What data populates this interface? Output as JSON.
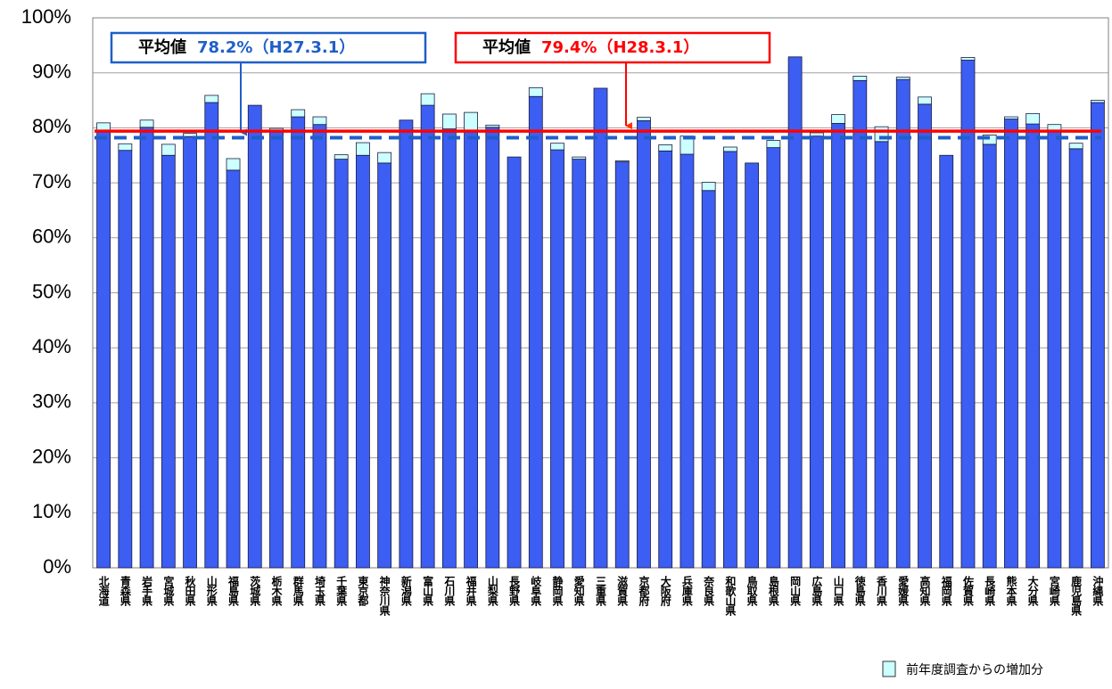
{
  "chart_data": {
    "type": "stacked_bar",
    "categories": [
      "北海道",
      "青森県",
      "岩手県",
      "宮城県",
      "秋田県",
      "山形県",
      "福島県",
      "茨城県",
      "栃木県",
      "群馬県",
      "埼玉県",
      "千葉県",
      "東京都",
      "神奈川県",
      "新潟県",
      "富山県",
      "石川県",
      "福井県",
      "山梨県",
      "長野県",
      "岐阜県",
      "静岡県",
      "愛知県",
      "三重県",
      "滋賀県",
      "京都府",
      "大阪府",
      "兵庫県",
      "奈良県",
      "和歌山県",
      "鳥取県",
      "島根県",
      "岡山県",
      "広島県",
      "山口県",
      "徳島県",
      "香川県",
      "愛媛県",
      "高知県",
      "福岡県",
      "佐賀県",
      "長崎県",
      "熊本県",
      "大分県",
      "宮崎県",
      "鹿児島県",
      "沖縄県"
    ],
    "series": [
      {
        "color": "#3d5ef2",
        "values": [
          79.4,
          75.9,
          80.1,
          75.0,
          78.4,
          84.6,
          72.3,
          84.1,
          79.4,
          82.0,
          80.6,
          74.3,
          75.0,
          73.6,
          81.4,
          84.1,
          79.8,
          79.5,
          80.1,
          74.7,
          85.7,
          76.0,
          74.3,
          87.2,
          73.8,
          81.3,
          75.8,
          75.2,
          68.6,
          75.7,
          73.6,
          76.4,
          92.9,
          78.5,
          80.8,
          88.6,
          77.5,
          88.8,
          84.3,
          75.0,
          92.3,
          77.0,
          81.6,
          80.7,
          79.4,
          76.2,
          84.6
        ]
      },
      {
        "name": "前年度調査からの増加分",
        "color": "#ccffff",
        "values": [
          1.5,
          1.2,
          1.3,
          2.0,
          0.6,
          1.3,
          2.1,
          0,
          0.5,
          1.3,
          1.4,
          0.8,
          2.3,
          1.9,
          0,
          2.1,
          2.7,
          3.3,
          0.4,
          0,
          1.6,
          1.2,
          0.4,
          0,
          0.2,
          0.6,
          1.1,
          3.3,
          1.5,
          0.8,
          0,
          1.3,
          0,
          0.6,
          1.6,
          0.8,
          2.7,
          0.4,
          1.3,
          0,
          0.5,
          1.7,
          0.4,
          1.9,
          1.2,
          1.0,
          0.4
        ]
      }
    ],
    "reference_lines": [
      {
        "prefix": "平均値",
        "value": 78.2,
        "label": "78.2%（H27.3.1）",
        "color": "#1f5fc8",
        "style": "dashed"
      },
      {
        "prefix": "平均値",
        "value": 79.4,
        "label": "79.4%（H28.3.1）",
        "color": "#ff0000",
        "style": "solid"
      }
    ],
    "ylim": [
      0,
      100
    ],
    "yticks": [
      {
        "value": 0,
        "label": "0%"
      },
      {
        "value": 10,
        "label": "10%"
      },
      {
        "value": 20,
        "label": "20%"
      },
      {
        "value": 30,
        "label": "30%"
      },
      {
        "value": 40,
        "label": "40%"
      },
      {
        "value": 50,
        "label": "50%"
      },
      {
        "value": 60,
        "label": "60%"
      },
      {
        "value": 70,
        "label": "70%"
      },
      {
        "value": 80,
        "label": "80%"
      },
      {
        "value": 90,
        "label": "90%"
      },
      {
        "value": 100,
        "label": "100%"
      }
    ],
    "grid": true,
    "legend": "bottom-right"
  }
}
